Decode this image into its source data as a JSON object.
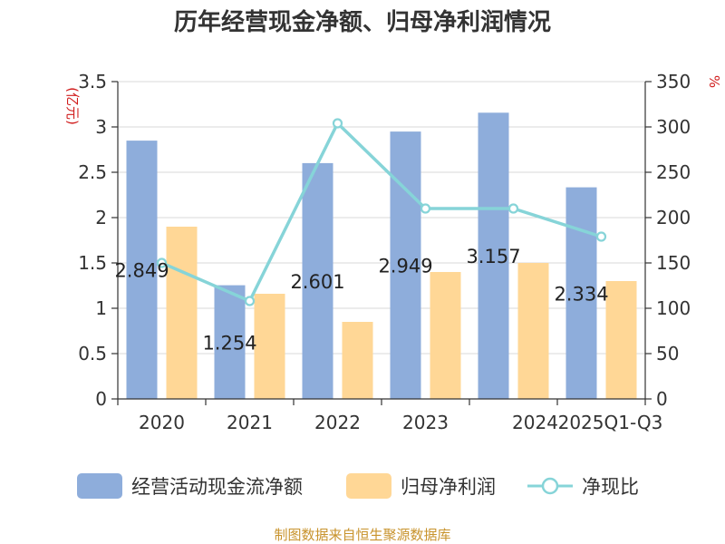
{
  "title": "历年经营现金净额、归母净利润情况",
  "source": "制图数据来自恒生聚源数据库",
  "colors": {
    "operating_cash": "#8eaddb",
    "net_profit": "#ffd796",
    "ratio": "#86d4d8",
    "unit_text": "#d01c1c",
    "source_text": "#c8932c"
  },
  "chart_data": {
    "type": "bar",
    "title": "历年经营现金净额、归母净利润情况",
    "categories": [
      "2020",
      "2021",
      "2022",
      "2023",
      "2024",
      "2025Q1-Q3"
    ],
    "y_left_unit": "(亿元)",
    "y_right_unit": "%",
    "y_left_ticks": [
      "0",
      "0.5",
      "1",
      "1.5",
      "2",
      "2.5",
      "3",
      "3.5"
    ],
    "y_right_ticks": [
      "0",
      "50",
      "100",
      "150",
      "200",
      "250",
      "300",
      "350"
    ],
    "ylim_left": [
      0,
      3.5
    ],
    "ylim_right": [
      0,
      350
    ],
    "grid": true,
    "legend_position": "bottom",
    "series": [
      {
        "name": "经营活动现金流净额",
        "type": "bar",
        "axis": "left",
        "values": [
          2.849,
          1.254,
          2.601,
          2.949,
          3.157,
          2.334
        ],
        "labels": [
          "2.849",
          "1.254",
          "2.601",
          "2.949",
          "3.157",
          "2.334"
        ]
      },
      {
        "name": "归母净利润",
        "type": "bar",
        "axis": "left",
        "values": [
          1.9,
          1.16,
          0.85,
          1.4,
          1.5,
          1.3
        ]
      },
      {
        "name": "净现比",
        "type": "line",
        "axis": "right",
        "values": [
          150,
          108,
          304,
          210,
          210,
          179
        ]
      }
    ]
  }
}
